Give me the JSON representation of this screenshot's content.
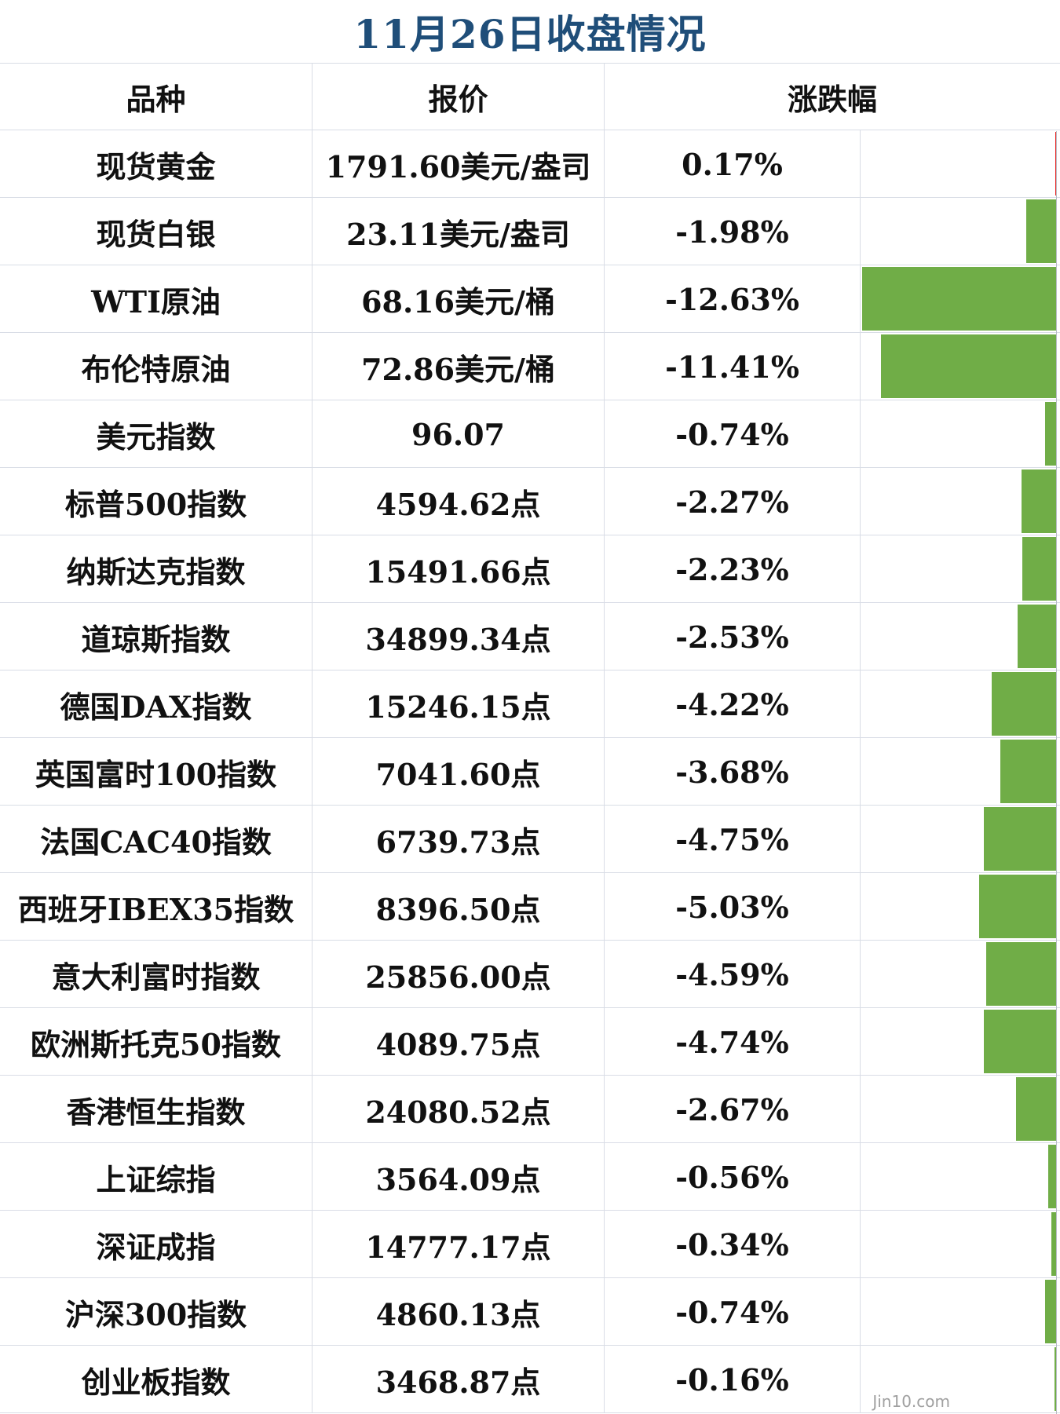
{
  "title": "11月26日收盘情况",
  "columns": {
    "name": "品种",
    "price": "报价",
    "change": "涨跌幅"
  },
  "watermark": "Jin10.com",
  "colors": {
    "up": "#e8201e",
    "down": "#70ad47",
    "title": "#1f4e79"
  },
  "chart_data": {
    "type": "bar",
    "title": "11月26日收盘情况",
    "unit": "%",
    "rows": [
      {
        "name": "现货黄金",
        "price": "1791.60美元/盎司",
        "change_label": "0.17%",
        "change": 0.17
      },
      {
        "name": "现货白银",
        "price": "23.11美元/盎司",
        "change_label": "-1.98%",
        "change": -1.98
      },
      {
        "name": "WTI原油",
        "price": "68.16美元/桶",
        "change_label": "-12.63%",
        "change": -12.63
      },
      {
        "name": "布伦特原油",
        "price": "72.86美元/桶",
        "change_label": "-11.41%",
        "change": -11.41
      },
      {
        "name": "美元指数",
        "price": "96.07",
        "change_label": "-0.74%",
        "change": -0.74
      },
      {
        "name": "标普500指数",
        "price": "4594.62点",
        "change_label": "-2.27%",
        "change": -2.27
      },
      {
        "name": "纳斯达克指数",
        "price": "15491.66点",
        "change_label": "-2.23%",
        "change": -2.23
      },
      {
        "name": "道琼斯指数",
        "price": "34899.34点",
        "change_label": "-2.53%",
        "change": -2.53
      },
      {
        "name": "德国DAX指数",
        "price": "15246.15点",
        "change_label": "-4.22%",
        "change": -4.22
      },
      {
        "name": "英国富时100指数",
        "price": "7041.60点",
        "change_label": "-3.68%",
        "change": -3.68
      },
      {
        "name": "法国CAC40指数",
        "price": "6739.73点",
        "change_label": "-4.75%",
        "change": -4.75
      },
      {
        "name": "西班牙IBEX35指数",
        "price": "8396.50点",
        "change_label": "-5.03%",
        "change": -5.03
      },
      {
        "name": "意大利富时指数",
        "price": "25856.00点",
        "change_label": "-4.59%",
        "change": -4.59
      },
      {
        "name": "欧洲斯托克50指数",
        "price": "4089.75点",
        "change_label": "-4.74%",
        "change": -4.74
      },
      {
        "name": "香港恒生指数",
        "price": "24080.52点",
        "change_label": "-2.67%",
        "change": -2.67
      },
      {
        "name": "上证综指",
        "price": "3564.09点",
        "change_label": "-0.56%",
        "change": -0.56
      },
      {
        "name": "深证成指",
        "price": "14777.17点",
        "change_label": "-0.34%",
        "change": -0.34
      },
      {
        "name": "沪深300指数",
        "price": "4860.13点",
        "change_label": "-0.74%",
        "change": -0.74
      },
      {
        "name": "创业板指数",
        "price": "3468.87点",
        "change_label": "-0.16%",
        "change": -0.16
      }
    ]
  }
}
